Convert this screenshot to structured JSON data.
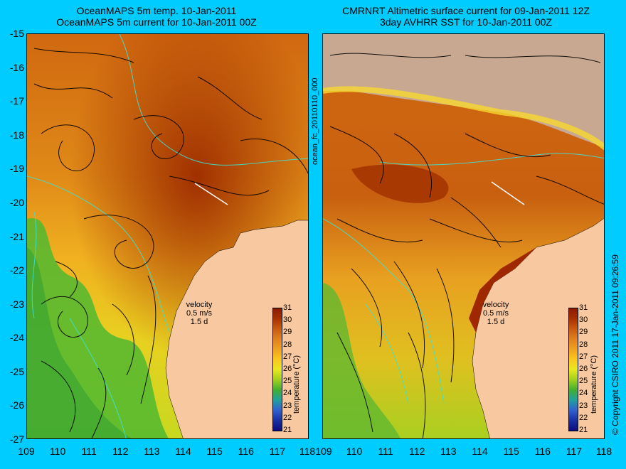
{
  "titles": {
    "left_line1": "OceanMAPS 5m temp. 10-Jan-2011",
    "left_line2": "OceanMAPS 5m current for 10-Jan-2011 00Z",
    "right_line1": "CMRNRT Altimetric surface current for 09-Jan-2011 12Z",
    "right_line2": "3day AVHRR SST for 10-Jan-2011 00Z"
  },
  "axes": {
    "lat_labels": [
      "-15",
      "-16",
      "-17",
      "-18",
      "-19",
      "-20",
      "-21",
      "-22",
      "-23",
      "-24",
      "-25",
      "-26",
      "-27"
    ],
    "lon_labels_left": [
      "109",
      "110",
      "111",
      "112",
      "113",
      "114",
      "115",
      "116",
      "117",
      "118"
    ],
    "lon_labels_right": [
      "109",
      "110",
      "111",
      "112",
      "113",
      "114",
      "115",
      "116",
      "117",
      "118"
    ]
  },
  "run_id": "ocean_fc_20110110_000",
  "copyright": "© Copyright CSIRO 2011  17-Jan-2011 09:26:59",
  "velocity_key": {
    "label": "velocity",
    "speed": "0.5 m/s",
    "duration": "1.5 d"
  },
  "colorbar": {
    "title": "temperature (°C)",
    "ticks": [
      "31",
      "30",
      "29",
      "28",
      "27",
      "26",
      "25",
      "24",
      "23",
      "22",
      "21"
    ],
    "colors": [
      "#8b1a00",
      "#a83000",
      "#c85a10",
      "#e08020",
      "#f0a020",
      "#f8c820",
      "#e8e820",
      "#a0d020",
      "#40b030",
      "#20a0a0",
      "#3060d0",
      "#1830a0",
      "#0c0c80"
    ]
  },
  "map_colors": {
    "land": "#f8c8a0",
    "land_dark": "#c8a890",
    "hot": "#a03000",
    "warm": "#d06810",
    "mid": "#e8a020",
    "cool": "#40b030",
    "contour": "#40e0d0"
  }
}
